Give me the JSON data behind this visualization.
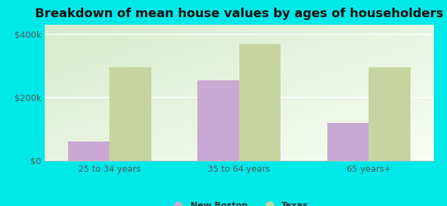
{
  "title": "Breakdown of mean house values by ages of householders",
  "categories": [
    "25 to 34 years",
    "35 to 64 years",
    "65 years+"
  ],
  "new_boston_values": [
    60000,
    255000,
    120000
  ],
  "texas_values": [
    295000,
    370000,
    295000
  ],
  "new_boston_color": "#c9a8d4",
  "texas_color": "#c8d4a0",
  "background_color": "#00e8e8",
  "plot_bg_top_left": "#d8eacc",
  "plot_bg_bottom_right": "#f8fdf5",
  "ylabel_ticks": [
    0,
    200000,
    400000
  ],
  "ylabel_labels": [
    "$0",
    "$200k",
    "$400k"
  ],
  "ylim": [
    0,
    430000
  ],
  "legend_new_boston": "New Boston",
  "legend_texas": "Texas",
  "bar_width": 0.32,
  "title_fontsize": 13,
  "tick_fontsize": 9,
  "legend_fontsize": 9,
  "tick_color": "#555555",
  "title_color": "#111111"
}
